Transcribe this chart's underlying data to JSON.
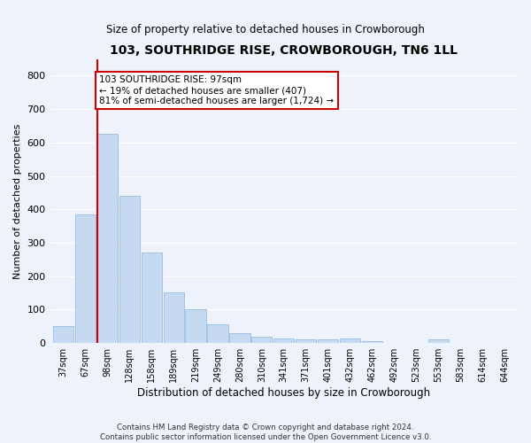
{
  "title": "103, SOUTHRIDGE RISE, CROWBOROUGH, TN6 1LL",
  "subtitle": "Size of property relative to detached houses in Crowborough",
  "xlabel": "Distribution of detached houses by size in Crowborough",
  "ylabel": "Number of detached properties",
  "categories": [
    "37sqm",
    "67sqm",
    "98sqm",
    "128sqm",
    "158sqm",
    "189sqm",
    "219sqm",
    "249sqm",
    "280sqm",
    "310sqm",
    "341sqm",
    "371sqm",
    "401sqm",
    "432sqm",
    "462sqm",
    "492sqm",
    "523sqm",
    "553sqm",
    "583sqm",
    "614sqm",
    "644sqm"
  ],
  "values": [
    50,
    385,
    625,
    440,
    270,
    152,
    100,
    55,
    30,
    20,
    15,
    10,
    10,
    13,
    5,
    0,
    0,
    10,
    0,
    0,
    0
  ],
  "bar_color": "#c5d9f1",
  "bar_edge_color": "#8ab4e0",
  "highlight_index": 2,
  "highlight_line_color": "#cc0000",
  "annotation_text": "103 SOUTHRIDGE RISE: 97sqm\n← 19% of detached houses are smaller (407)\n81% of semi-detached houses are larger (1,724) →",
  "annotation_box_color": "#ffffff",
  "annotation_box_edge_color": "#cc0000",
  "ylim": [
    0,
    850
  ],
  "yticks": [
    0,
    100,
    200,
    300,
    400,
    500,
    600,
    700,
    800
  ],
  "background_color": "#eef2fb",
  "grid_color": "#ffffff",
  "footer": "Contains HM Land Registry data © Crown copyright and database right 2024.\nContains public sector information licensed under the Open Government Licence v3.0."
}
